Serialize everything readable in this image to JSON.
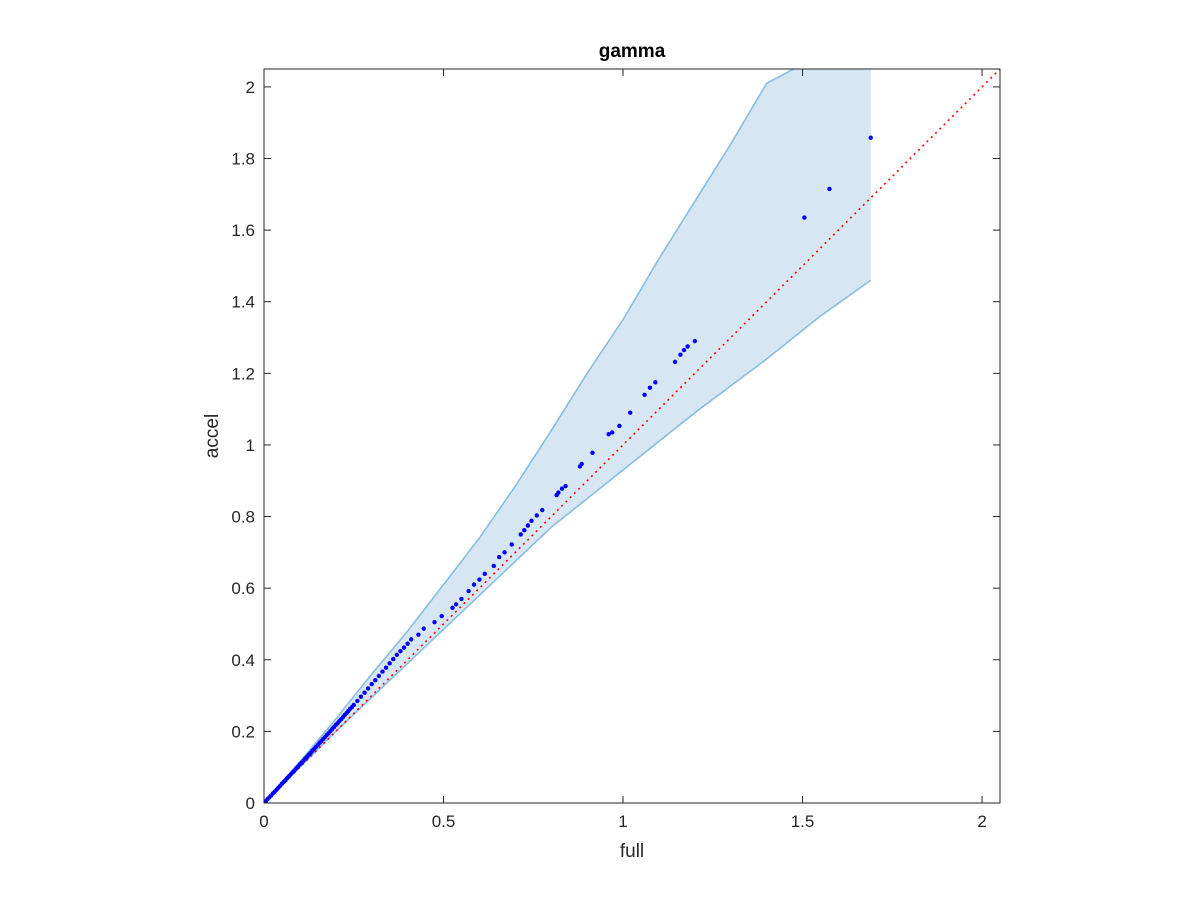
{
  "chart_data": {
    "type": "scatter",
    "title": "gamma",
    "xlabel": "full",
    "ylabel": "accel",
    "xlim": [
      0,
      2.05
    ],
    "ylim": [
      0,
      2.05
    ],
    "xticks": [
      0,
      0.5,
      1,
      1.5,
      2
    ],
    "xtick_labels": [
      "0",
      "0.5",
      "1",
      "1.5",
      "2"
    ],
    "yticks": [
      0,
      0.2,
      0.4,
      0.6,
      0.8,
      1,
      1.2,
      1.4,
      1.6,
      1.8,
      2
    ],
    "ytick_labels": [
      "0",
      "0.2",
      "0.4",
      "0.6",
      "0.8",
      "1",
      "1.2",
      "1.4",
      "1.6",
      "1.8",
      "2"
    ],
    "grid": false,
    "reference_line": {
      "slope": 1,
      "intercept": 0,
      "style": "dotted",
      "color": "#ff0000"
    },
    "band": {
      "fill_color": "#d6e7f3",
      "edge_color": "#88bde0",
      "x_end": 1.69,
      "upper": [
        [
          0,
          0
        ],
        [
          0.1,
          0.115
        ],
        [
          0.2,
          0.235
        ],
        [
          0.3,
          0.36
        ],
        [
          0.4,
          0.48
        ],
        [
          0.5,
          0.61
        ],
        [
          0.6,
          0.74
        ],
        [
          0.7,
          0.885
        ],
        [
          0.8,
          1.04
        ],
        [
          0.9,
          1.2
        ],
        [
          1.0,
          1.35
        ],
        [
          1.1,
          1.52
        ],
        [
          1.2,
          1.68
        ],
        [
          1.3,
          1.84
        ],
        [
          1.4,
          2.01
        ],
        [
          1.475,
          2.05
        ]
      ],
      "lower": [
        [
          0,
          0
        ],
        [
          0.2,
          0.2
        ],
        [
          0.4,
          0.39
        ],
        [
          0.6,
          0.58
        ],
        [
          0.8,
          0.77
        ],
        [
          1.0,
          0.93
        ],
        [
          1.2,
          1.09
        ],
        [
          1.4,
          1.24
        ],
        [
          1.55,
          1.36
        ],
        [
          1.69,
          1.46
        ]
      ]
    },
    "series": [
      {
        "marker_color": "#0000ff",
        "points": [
          [
            0.005,
            0.005
          ],
          [
            0.01,
            0.011
          ],
          [
            0.015,
            0.016
          ],
          [
            0.02,
            0.021
          ],
          [
            0.025,
            0.027
          ],
          [
            0.03,
            0.032
          ],
          [
            0.035,
            0.037
          ],
          [
            0.04,
            0.043
          ],
          [
            0.045,
            0.048
          ],
          [
            0.05,
            0.054
          ],
          [
            0.055,
            0.059
          ],
          [
            0.06,
            0.064
          ],
          [
            0.065,
            0.07
          ],
          [
            0.07,
            0.075
          ],
          [
            0.075,
            0.081
          ],
          [
            0.08,
            0.086
          ],
          [
            0.085,
            0.091
          ],
          [
            0.09,
            0.097
          ],
          [
            0.095,
            0.102
          ],
          [
            0.1,
            0.108
          ],
          [
            0.105,
            0.113
          ],
          [
            0.11,
            0.118
          ],
          [
            0.115,
            0.124
          ],
          [
            0.12,
            0.129
          ],
          [
            0.125,
            0.135
          ],
          [
            0.13,
            0.14
          ],
          [
            0.135,
            0.146
          ],
          [
            0.14,
            0.151
          ],
          [
            0.145,
            0.157
          ],
          [
            0.15,
            0.162
          ],
          [
            0.155,
            0.168
          ],
          [
            0.16,
            0.173
          ],
          [
            0.165,
            0.179
          ],
          [
            0.17,
            0.184
          ],
          [
            0.175,
            0.19
          ],
          [
            0.18,
            0.195
          ],
          [
            0.185,
            0.201
          ],
          [
            0.19,
            0.207
          ],
          [
            0.195,
            0.212
          ],
          [
            0.2,
            0.218
          ],
          [
            0.205,
            0.223
          ],
          [
            0.21,
            0.229
          ],
          [
            0.215,
            0.234
          ],
          [
            0.22,
            0.24
          ],
          [
            0.225,
            0.246
          ],
          [
            0.23,
            0.251
          ],
          [
            0.235,
            0.257
          ],
          [
            0.24,
            0.263
          ],
          [
            0.245,
            0.268
          ],
          [
            0.25,
            0.274
          ],
          [
            0.26,
            0.285
          ],
          [
            0.27,
            0.297
          ],
          [
            0.28,
            0.308
          ],
          [
            0.29,
            0.32
          ],
          [
            0.3,
            0.332
          ],
          [
            0.31,
            0.343
          ],
          [
            0.32,
            0.355
          ],
          [
            0.33,
            0.367
          ],
          [
            0.34,
            0.378
          ],
          [
            0.35,
            0.39
          ],
          [
            0.36,
            0.402
          ],
          [
            0.37,
            0.414
          ],
          [
            0.38,
            0.424
          ],
          [
            0.39,
            0.434
          ],
          [
            0.4,
            0.445
          ],
          [
            0.41,
            0.457
          ],
          [
            0.43,
            0.47
          ],
          [
            0.445,
            0.487
          ],
          [
            0.475,
            0.505
          ],
          [
            0.495,
            0.522
          ],
          [
            0.525,
            0.545
          ],
          [
            0.535,
            0.555
          ],
          [
            0.55,
            0.57
          ],
          [
            0.57,
            0.592
          ],
          [
            0.585,
            0.61
          ],
          [
            0.6,
            0.624
          ],
          [
            0.615,
            0.64
          ],
          [
            0.64,
            0.662
          ],
          [
            0.655,
            0.687
          ],
          [
            0.67,
            0.7
          ],
          [
            0.69,
            0.722
          ],
          [
            0.715,
            0.75
          ],
          [
            0.725,
            0.762
          ],
          [
            0.735,
            0.775
          ],
          [
            0.745,
            0.788
          ],
          [
            0.76,
            0.803
          ],
          [
            0.775,
            0.818
          ],
          [
            0.815,
            0.86
          ],
          [
            0.82,
            0.867
          ],
          [
            0.83,
            0.878
          ],
          [
            0.84,
            0.885
          ],
          [
            0.88,
            0.94
          ],
          [
            0.885,
            0.947
          ],
          [
            0.915,
            0.978
          ],
          [
            0.96,
            1.03
          ],
          [
            0.97,
            1.035
          ],
          [
            0.99,
            1.053
          ],
          [
            1.02,
            1.09
          ],
          [
            1.06,
            1.14
          ],
          [
            1.075,
            1.16
          ],
          [
            1.09,
            1.175
          ],
          [
            1.145,
            1.232
          ],
          [
            1.16,
            1.252
          ],
          [
            1.17,
            1.265
          ],
          [
            1.18,
            1.275
          ],
          [
            1.2,
            1.29
          ],
          [
            1.505,
            1.635
          ],
          [
            1.575,
            1.715
          ],
          [
            1.69,
            1.858
          ]
        ]
      }
    ]
  }
}
